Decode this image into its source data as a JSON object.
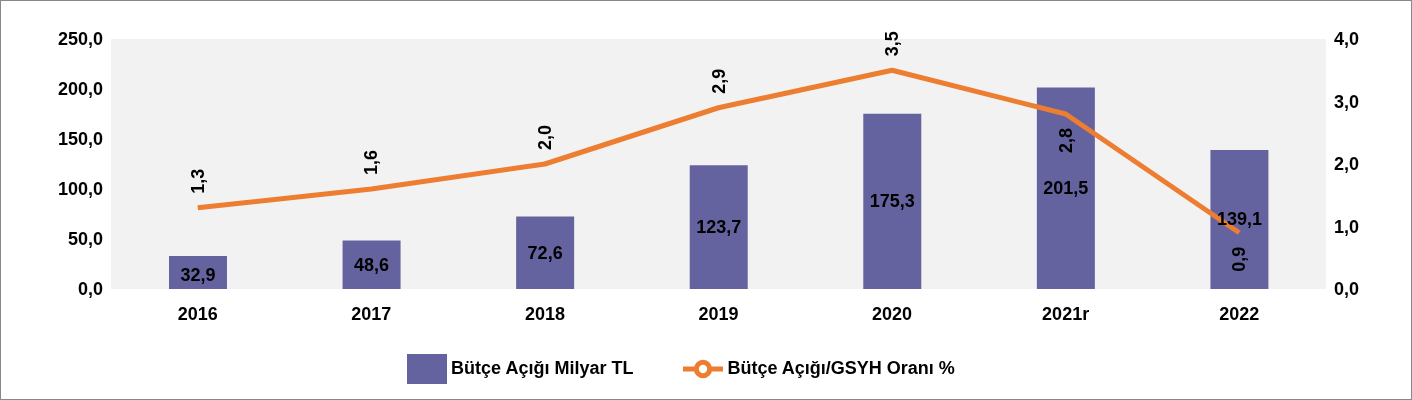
{
  "chart_data": {
    "type": "bar",
    "categories": [
      "2016",
      "2017",
      "2018",
      "2019",
      "2020",
      "2021r",
      "2022"
    ],
    "series": [
      {
        "name": "Bütçe Açığı Milyar TL",
        "color": "#65639f",
        "values": [
          32.9,
          48.6,
          72.6,
          123.7,
          175.3,
          201.5,
          139.1
        ],
        "value_labels": [
          "32,9",
          "48,6",
          "72,6",
          "123,7",
          "175,3",
          "201,5",
          "139,1"
        ]
      },
      {
        "name": "Bütçe Açığı/GSYH Oranı %",
        "type": "line",
        "axis": "y2",
        "color": "#ed7d31",
        "values": [
          1.3,
          1.6,
          2.0,
          2.9,
          3.5,
          2.8,
          0.9
        ],
        "value_labels": [
          "1,3",
          "1,6",
          "2,0",
          "2,9",
          "3,5",
          "2,8",
          "0,9"
        ]
      }
    ],
    "ylim": [
      0,
      250
    ],
    "yticks": [
      {
        "value": 0,
        "label": "0,0"
      },
      {
        "value": 50,
        "label": "50,0"
      },
      {
        "value": 100,
        "label": "100,0"
      },
      {
        "value": 150,
        "label": "150,0"
      },
      {
        "value": 200,
        "label": "200,0"
      },
      {
        "value": 250,
        "label": "250,0"
      }
    ],
    "y2lim": [
      0,
      4
    ],
    "y2ticks": [
      {
        "value": 0,
        "label": "0,0"
      },
      {
        "value": 1,
        "label": "1,0"
      },
      {
        "value": 2,
        "label": "2,0"
      },
      {
        "value": 3,
        "label": "3,0"
      },
      {
        "value": 4,
        "label": "4,0"
      }
    ],
    "legend": "bottom",
    "marker": "none"
  }
}
